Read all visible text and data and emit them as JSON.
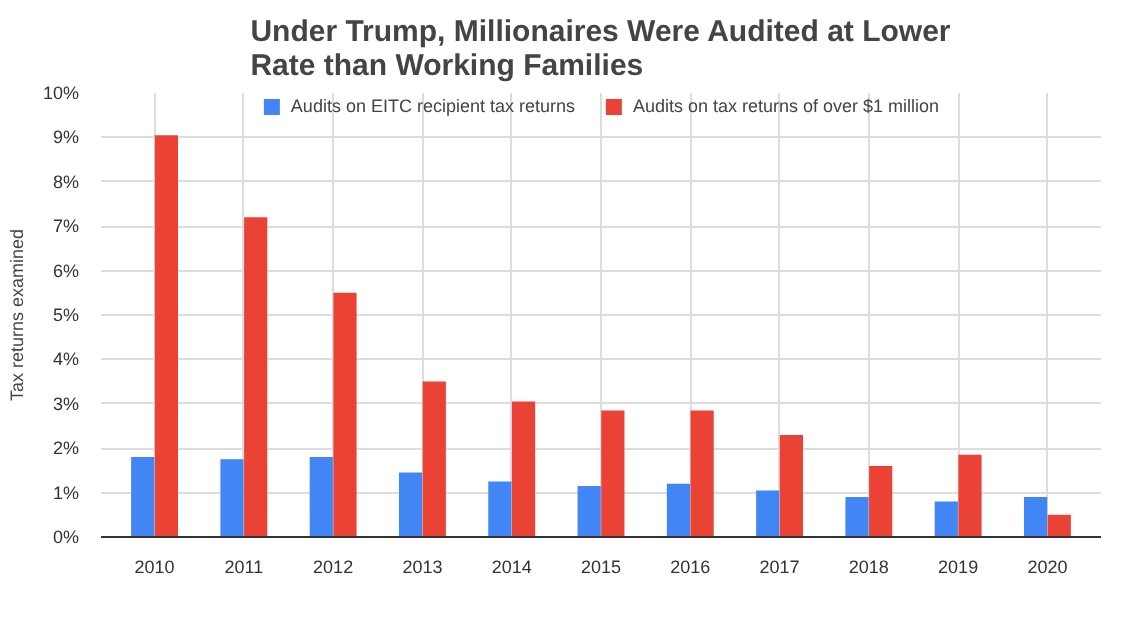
{
  "chart_data": {
    "type": "bar",
    "title": "Under Trump, Millionaires Were Audited at Lower Rate than Working Families",
    "ylabel": "Tax returns examined",
    "categories": [
      "2010",
      "2011",
      "2012",
      "2013",
      "2014",
      "2015",
      "2016",
      "2017",
      "2018",
      "2019",
      "2020"
    ],
    "series": [
      {
        "name": "Audits on EITC recipient tax returns",
        "color": "#4285f4",
        "values": [
          1.8,
          1.75,
          1.8,
          1.45,
          1.25,
          1.15,
          1.2,
          1.05,
          0.9,
          0.8,
          0.9
        ]
      },
      {
        "name": "Audits on tax returns of over $1 million",
        "color": "#ea4335",
        "values": [
          9.05,
          7.2,
          5.5,
          3.5,
          3.05,
          2.85,
          2.85,
          2.3,
          1.6,
          1.85,
          0.5
        ]
      }
    ],
    "ylim": [
      0,
      10
    ],
    "yticks": [
      {
        "value": 0,
        "label": "0%"
      },
      {
        "value": 1,
        "label": "1%"
      },
      {
        "value": 2,
        "label": "2%"
      },
      {
        "value": 3,
        "label": "3%"
      },
      {
        "value": 4,
        "label": "4%"
      },
      {
        "value": 5,
        "label": "5%"
      },
      {
        "value": 6,
        "label": "6%"
      },
      {
        "value": 7,
        "label": "7%"
      },
      {
        "value": 8,
        "label": "8%"
      },
      {
        "value": 9,
        "label": "9%"
      },
      {
        "value": 10,
        "label": "10%"
      }
    ],
    "grid": true,
    "legend": "top"
  }
}
